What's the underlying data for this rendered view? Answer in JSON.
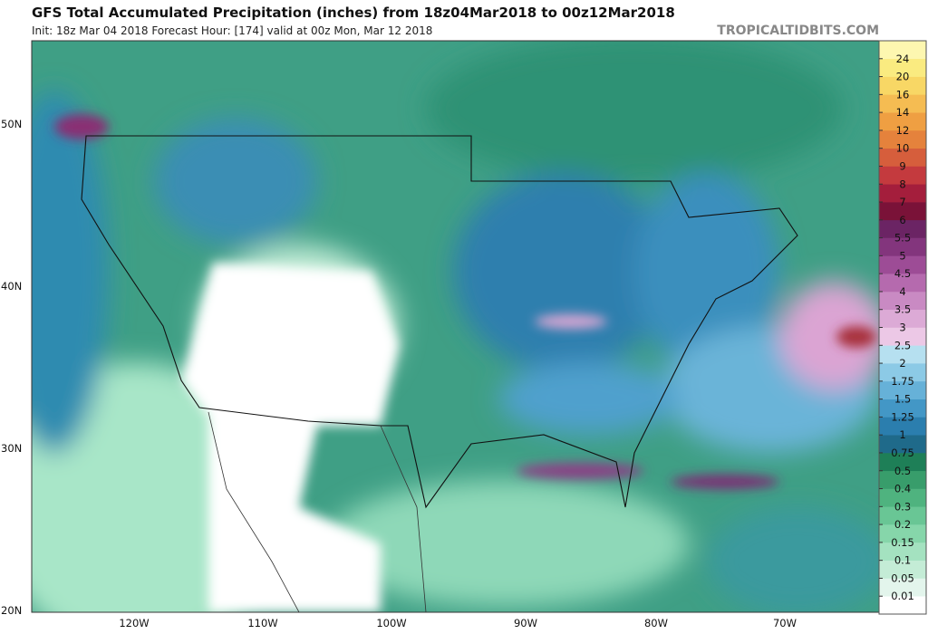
{
  "header": {
    "title": "GFS Total Accumulated Precipitation (inches) from 18z04Mar2018 to 00z12Mar2018",
    "subtitle": "Init: 18z Mar 04 2018   Forecast Hour: [174]   valid at 00z Mon, Mar 12 2018",
    "watermark": "TROPICALTIDBITS.COM"
  },
  "map": {
    "lat_labels": [
      "50N",
      "40N",
      "30N",
      "20N"
    ],
    "lon_labels": [
      "120W",
      "110W",
      "100W",
      "90W",
      "80W",
      "70W"
    ]
  },
  "colorbar": {
    "labels": [
      "0.01",
      "0.05",
      "0.1",
      "0.15",
      "0.2",
      "0.3",
      "0.4",
      "0.5",
      "0.75",
      "1",
      "1.25",
      "1.5",
      "1.75",
      "2",
      "2.5",
      "3",
      "3.5",
      "4",
      "4.5",
      "5",
      "5.5",
      "6",
      "7",
      "8",
      "9",
      "10",
      "12",
      "14",
      "16",
      "20",
      "24"
    ],
    "colors": [
      "#ffffff",
      "#e3f5ec",
      "#c4ecd6",
      "#a4e2c0",
      "#86d6aa",
      "#69c695",
      "#4fb37f",
      "#389d6b",
      "#1e7f57",
      "#1f6a8a",
      "#2b7eae",
      "#4397c6",
      "#66b1d8",
      "#8ccae6",
      "#b6e0f0",
      "#ecc8e6",
      "#dcaad6",
      "#c98ac3",
      "#b56aae",
      "#9d4c96",
      "#83357d",
      "#6b2464",
      "#7a1238",
      "#a41e3c",
      "#c43a3e",
      "#d65e3c",
      "#e5823c",
      "#ef9f42",
      "#f5bc52",
      "#f8d765",
      "#faeb80",
      "#fdf7b0"
    ]
  }
}
